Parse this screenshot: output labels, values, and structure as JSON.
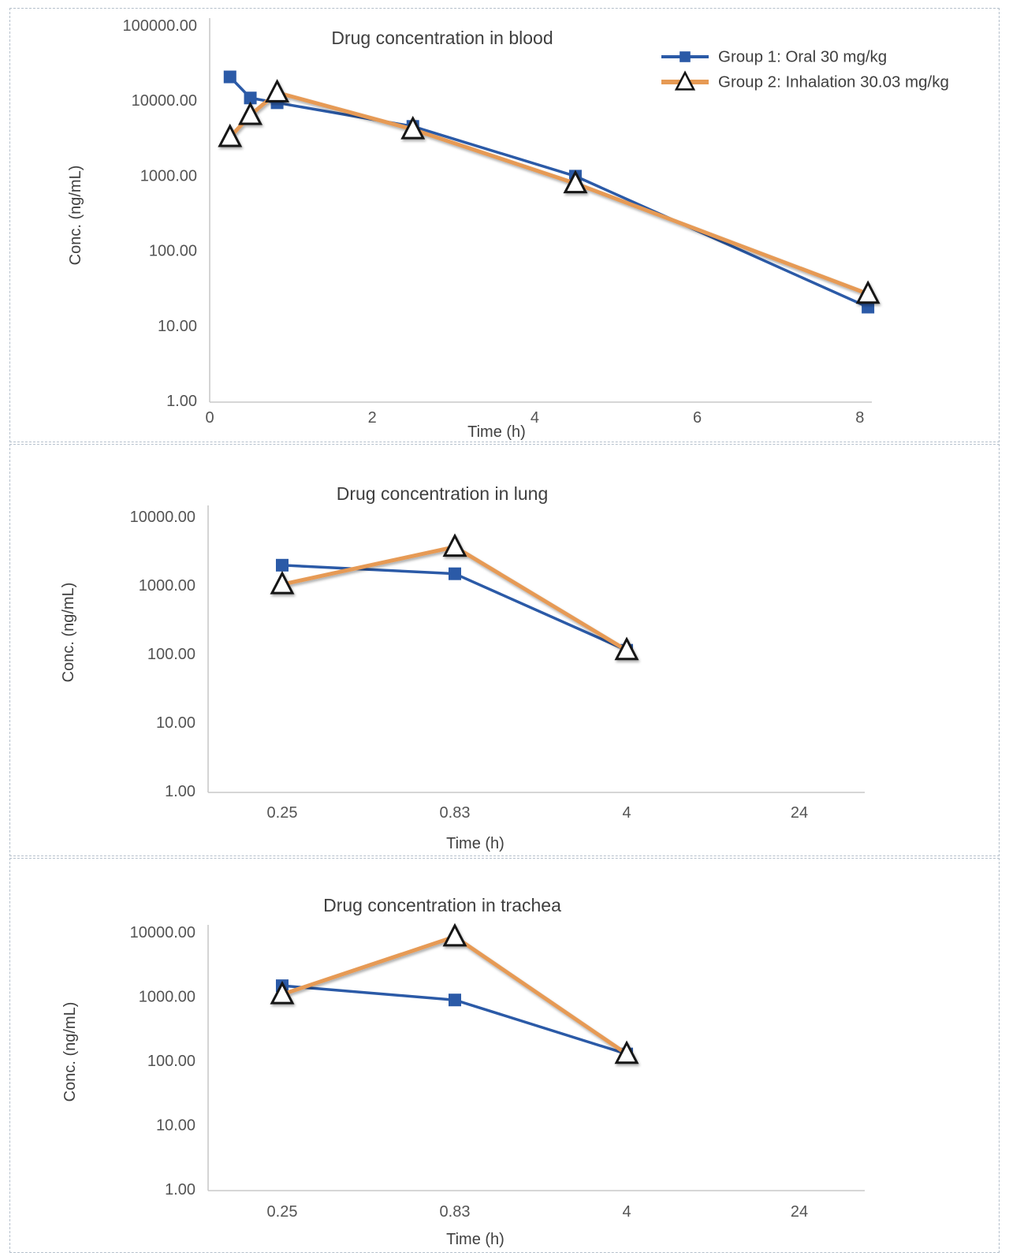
{
  "page": {
    "background": "#ffffff"
  },
  "colors": {
    "group1_blue": "#2b5aa7",
    "group2_orange": "#e69a54",
    "marker_stroke": "#141414",
    "marker_fill_open": "#ffffff",
    "axis_line": "#c9c9c9",
    "title_text": "#3f3f3f",
    "tick_text": "#545454",
    "axis_label_text": "#404040",
    "panel_border": "#b4bfcb"
  },
  "legend": {
    "position": "top-right",
    "items": [
      {
        "label": "Group 1: Oral 30 mg/kg",
        "marker": "square",
        "color": "#2b5aa7"
      },
      {
        "label": "Group 2: Inhalation 30.03 mg/kg",
        "marker": "triangle",
        "color": "#e69a54"
      }
    ]
  },
  "chart_data": [
    {
      "type": "line",
      "title": "Drug concentration in blood",
      "xlabel": "Time (h)",
      "ylabel": "Conc. (ng/mL)",
      "x_axis": {
        "type": "linear",
        "ticks": [
          0,
          2,
          4,
          6,
          8
        ],
        "range": [
          0,
          8.6
        ]
      },
      "y_axis": {
        "scale": "log",
        "range": [
          1,
          100000
        ],
        "ticks": [
          {
            "v": 100000,
            "label": "100000.00"
          },
          {
            "v": 10000,
            "label": "10000.00"
          },
          {
            "v": 1000,
            "label": "1000.00"
          },
          {
            "v": 100,
            "label": "100.00"
          },
          {
            "v": 10,
            "label": "10.00"
          },
          {
            "v": 1,
            "label": "1.00"
          }
        ]
      },
      "legend": true,
      "grid": false,
      "series": [
        {
          "name": "Group 1: Oral 30 mg/kg",
          "marker": "square",
          "x": [
            0.25,
            0.5,
            0.83,
            2.5,
            4.5,
            8.1
          ],
          "y": [
            21000,
            11000,
            9500,
            4600,
            1000,
            18
          ]
        },
        {
          "name": "Group 2: Inhalation 30.03 mg/kg",
          "marker": "triangle",
          "x": [
            0.25,
            0.5,
            0.83,
            2.5,
            4.5,
            8.1
          ],
          "y": [
            3300,
            6500,
            13000,
            4200,
            800,
            27
          ]
        }
      ]
    },
    {
      "type": "line",
      "title": "Drug concentration in lung",
      "xlabel": "Time (h)",
      "ylabel": "Conc. (ng/mL)",
      "x_axis": {
        "type": "category",
        "categories": [
          "0.25",
          "0.83",
          "4",
          "24"
        ]
      },
      "y_axis": {
        "scale": "log",
        "range": [
          1,
          10000
        ],
        "ticks": [
          {
            "v": 10000,
            "label": "10000.00"
          },
          {
            "v": 1000,
            "label": "1000.00"
          },
          {
            "v": 100,
            "label": "100.00"
          },
          {
            "v": 10,
            "label": "10.00"
          },
          {
            "v": 1,
            "label": "1.00"
          }
        ]
      },
      "legend": false,
      "grid": false,
      "series": [
        {
          "name": "Group 1: Oral 30 mg/kg",
          "marker": "square",
          "y": [
            2000,
            1500,
            115,
            null
          ]
        },
        {
          "name": "Group 2: Inhalation 30.03 mg/kg",
          "marker": "triangle",
          "y": [
            1050,
            3700,
            115,
            null
          ]
        }
      ]
    },
    {
      "type": "line",
      "title": "Drug concentration in trachea",
      "xlabel": "Time (h)",
      "ylabel": "Conc. (ng/mL)",
      "x_axis": {
        "type": "category",
        "categories": [
          "0.25",
          "0.83",
          "4",
          "24"
        ]
      },
      "y_axis": {
        "scale": "log",
        "range": [
          1,
          10000
        ],
        "ticks": [
          {
            "v": 10000,
            "label": "10000.00"
          },
          {
            "v": 1000,
            "label": "1000.00"
          },
          {
            "v": 100,
            "label": "100.00"
          },
          {
            "v": 10,
            "label": "10.00"
          },
          {
            "v": 1,
            "label": "1.00"
          }
        ]
      },
      "legend": false,
      "grid": false,
      "series": [
        {
          "name": "Group 1: Oral 30 mg/kg",
          "marker": "square",
          "y": [
            1500,
            900,
            130,
            null
          ]
        },
        {
          "name": "Group 2: Inhalation 30.03 mg/kg",
          "marker": "triangle",
          "y": [
            1100,
            8700,
            130,
            null
          ]
        }
      ]
    }
  ]
}
